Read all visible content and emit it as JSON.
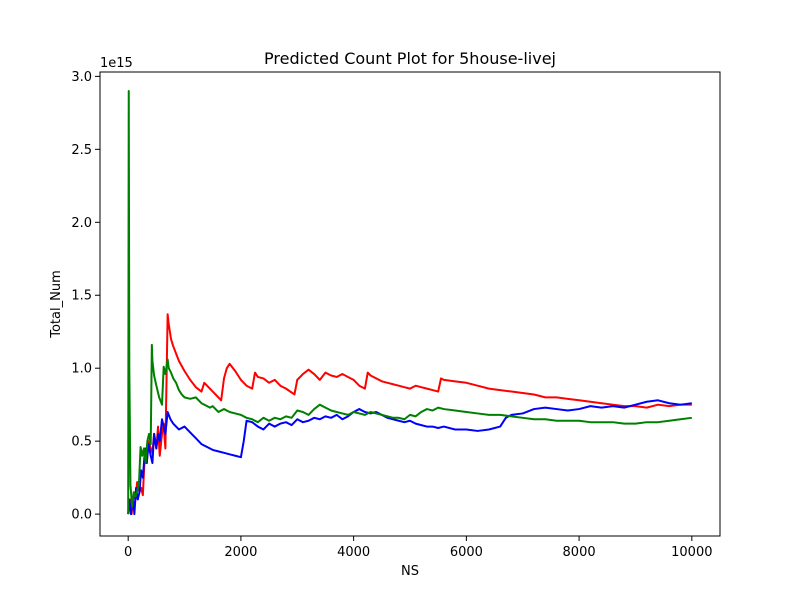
{
  "chart_data": {
    "type": "line",
    "title": "Predicted Count Plot for 5house-livej",
    "xlabel": "NS",
    "ylabel": "Total_Num",
    "y_offset_label": "1e15",
    "xlim": [
      -500,
      10500
    ],
    "ylim": [
      -0.15,
      3.03
    ],
    "y_scale": 1000000000000000.0,
    "xticks": [
      0,
      2000,
      4000,
      6000,
      8000,
      10000
    ],
    "xtick_labels": [
      "0",
      "2000",
      "4000",
      "6000",
      "8000",
      "10000"
    ],
    "yticks": [
      0.0,
      0.5,
      1.0,
      1.5,
      2.0,
      2.5,
      3.0
    ],
    "ytick_labels": [
      "0.0",
      "0.5",
      "1.0",
      "1.5",
      "2.0",
      "2.5",
      "3.0"
    ],
    "grid": false,
    "legend": "none",
    "series": [
      {
        "color": "#ff0000",
        "x": [
          0,
          30,
          60,
          100,
          130,
          160,
          200,
          230,
          260,
          300,
          330,
          360,
          400,
          430,
          460,
          500,
          530,
          560,
          600,
          630,
          660,
          700,
          720,
          760,
          800,
          900,
          1000,
          1100,
          1200,
          1300,
          1350,
          1400,
          1500,
          1600,
          1650,
          1700,
          1750,
          1800,
          1900,
          2000,
          2100,
          2200,
          2250,
          2300,
          2400,
          2500,
          2600,
          2700,
          2800,
          2950,
          3000,
          3100,
          3200,
          3300,
          3400,
          3500,
          3600,
          3700,
          3800,
          3900,
          4000,
          4100,
          4200,
          4250,
          4300,
          4400,
          4500,
          4600,
          4700,
          4800,
          4900,
          5000,
          5100,
          5200,
          5300,
          5400,
          5500,
          5550,
          5600,
          5800,
          6000,
          6200,
          6400,
          6600,
          6800,
          7000,
          7200,
          7400,
          7600,
          7800,
          8000,
          8200,
          8400,
          8600,
          8800,
          9000,
          9200,
          9400,
          9600,
          9800,
          10000
        ],
        "values": [
          0.0,
          0.1,
          0.0,
          0.15,
          0.1,
          0.22,
          0.15,
          0.18,
          0.13,
          0.45,
          0.35,
          0.5,
          0.45,
          0.42,
          0.55,
          0.45,
          0.6,
          0.4,
          0.55,
          0.62,
          0.45,
          1.37,
          1.3,
          1.2,
          1.15,
          1.05,
          0.98,
          0.92,
          0.87,
          0.84,
          0.9,
          0.88,
          0.84,
          0.8,
          0.78,
          0.93,
          1.0,
          1.03,
          0.98,
          0.92,
          0.88,
          0.86,
          0.97,
          0.94,
          0.93,
          0.9,
          0.92,
          0.88,
          0.86,
          0.82,
          0.92,
          0.96,
          0.99,
          0.96,
          0.92,
          0.97,
          0.95,
          0.94,
          0.96,
          0.94,
          0.92,
          0.88,
          0.86,
          0.97,
          0.95,
          0.93,
          0.91,
          0.9,
          0.89,
          0.88,
          0.87,
          0.86,
          0.88,
          0.87,
          0.86,
          0.85,
          0.84,
          0.93,
          0.92,
          0.91,
          0.9,
          0.88,
          0.86,
          0.85,
          0.84,
          0.83,
          0.82,
          0.8,
          0.8,
          0.79,
          0.78,
          0.77,
          0.76,
          0.75,
          0.74,
          0.74,
          0.73,
          0.75,
          0.74,
          0.75,
          0.75
        ]
      },
      {
        "color": "#0000ff",
        "x": [
          0,
          20,
          50,
          80,
          110,
          140,
          170,
          200,
          230,
          260,
          300,
          330,
          360,
          400,
          430,
          460,
          500,
          530,
          560,
          600,
          630,
          660,
          700,
          750,
          800,
          900,
          1000,
          1100,
          1200,
          1300,
          1400,
          1500,
          1600,
          1700,
          1800,
          1900,
          2000,
          2050,
          2100,
          2200,
          2300,
          2400,
          2500,
          2600,
          2700,
          2800,
          2900,
          3000,
          3100,
          3200,
          3300,
          3400,
          3500,
          3600,
          3700,
          3800,
          3900,
          4000,
          4100,
          4200,
          4300,
          4400,
          4500,
          4600,
          4700,
          4800,
          4900,
          5000,
          5100,
          5200,
          5300,
          5400,
          5500,
          5600,
          5800,
          6000,
          6200,
          6400,
          6600,
          6700,
          6800,
          7000,
          7200,
          7400,
          7600,
          7800,
          8000,
          8200,
          8400,
          8600,
          8800,
          9000,
          9200,
          9400,
          9600,
          9800,
          10000
        ],
        "values": [
          0.0,
          0.1,
          0.0,
          0.12,
          0.0,
          0.18,
          0.1,
          0.15,
          0.3,
          0.25,
          0.45,
          0.35,
          0.48,
          0.4,
          0.35,
          0.55,
          0.45,
          0.55,
          0.5,
          0.65,
          0.6,
          0.55,
          0.7,
          0.65,
          0.62,
          0.58,
          0.6,
          0.56,
          0.52,
          0.48,
          0.46,
          0.44,
          0.43,
          0.42,
          0.41,
          0.4,
          0.39,
          0.5,
          0.64,
          0.63,
          0.6,
          0.58,
          0.62,
          0.6,
          0.62,
          0.63,
          0.61,
          0.65,
          0.63,
          0.64,
          0.66,
          0.65,
          0.67,
          0.66,
          0.68,
          0.65,
          0.67,
          0.7,
          0.72,
          0.7,
          0.69,
          0.7,
          0.68,
          0.66,
          0.65,
          0.64,
          0.63,
          0.64,
          0.62,
          0.61,
          0.6,
          0.6,
          0.59,
          0.6,
          0.58,
          0.58,
          0.57,
          0.58,
          0.6,
          0.66,
          0.68,
          0.69,
          0.72,
          0.73,
          0.72,
          0.71,
          0.72,
          0.74,
          0.73,
          0.74,
          0.73,
          0.75,
          0.77,
          0.78,
          0.76,
          0.75,
          0.76
        ]
      },
      {
        "color": "#008000",
        "x": [
          0,
          10,
          20,
          40,
          70,
          100,
          130,
          160,
          190,
          220,
          250,
          280,
          310,
          340,
          370,
          400,
          420,
          430,
          460,
          500,
          550,
          600,
          630,
          660,
          700,
          720,
          760,
          800,
          850,
          900,
          950,
          1000,
          1100,
          1200,
          1300,
          1400,
          1450,
          1500,
          1600,
          1700,
          1800,
          1900,
          2000,
          2100,
          2200,
          2300,
          2400,
          2500,
          2600,
          2700,
          2800,
          2900,
          3000,
          3100,
          3200,
          3300,
          3400,
          3500,
          3600,
          3700,
          3800,
          3900,
          4000,
          4100,
          4200,
          4300,
          4400,
          4500,
          4600,
          4700,
          4800,
          4900,
          5000,
          5100,
          5200,
          5300,
          5400,
          5500,
          5600,
          5800,
          6000,
          6200,
          6400,
          6600,
          6800,
          7000,
          7200,
          7400,
          7600,
          7800,
          8000,
          8200,
          8400,
          8600,
          8800,
          9000,
          9200,
          9400,
          9600,
          9800,
          10000
        ],
        "values": [
          0.0,
          2.9,
          1.0,
          0.2,
          0.05,
          0.15,
          0.12,
          0.16,
          0.2,
          0.46,
          0.4,
          0.45,
          0.35,
          0.5,
          0.55,
          0.48,
          1.16,
          1.05,
          0.95,
          0.88,
          0.8,
          0.75,
          1.01,
          0.96,
          1.06,
          1.0,
          0.97,
          0.93,
          0.9,
          0.85,
          0.82,
          0.8,
          0.79,
          0.8,
          0.76,
          0.74,
          0.73,
          0.74,
          0.7,
          0.72,
          0.7,
          0.69,
          0.68,
          0.66,
          0.65,
          0.63,
          0.66,
          0.64,
          0.66,
          0.65,
          0.67,
          0.66,
          0.71,
          0.7,
          0.68,
          0.72,
          0.75,
          0.73,
          0.71,
          0.7,
          0.69,
          0.68,
          0.7,
          0.69,
          0.68,
          0.7,
          0.69,
          0.68,
          0.67,
          0.66,
          0.66,
          0.65,
          0.68,
          0.67,
          0.7,
          0.72,
          0.71,
          0.73,
          0.72,
          0.71,
          0.7,
          0.69,
          0.68,
          0.68,
          0.67,
          0.66,
          0.65,
          0.65,
          0.64,
          0.64,
          0.64,
          0.63,
          0.63,
          0.63,
          0.62,
          0.62,
          0.63,
          0.63,
          0.64,
          0.65,
          0.66
        ]
      }
    ]
  }
}
